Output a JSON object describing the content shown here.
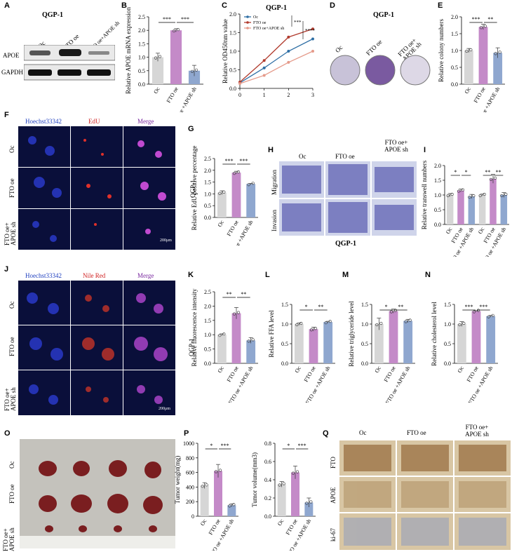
{
  "panels": {
    "A": {
      "label": "A",
      "title": "QGP-1",
      "lanes": [
        "Oc",
        "FTO oe",
        "FTO oe+APOE sh"
      ],
      "rows": [
        "APOE",
        "GAPDH"
      ]
    },
    "B": {
      "label": "B",
      "ylabel": "Relative APOE mRNA expression",
      "sig": [
        "***",
        "***"
      ]
    },
    "C": {
      "label": "C",
      "title": "QGP-1",
      "ylabel": "Relative OD450nm value",
      "legend": [
        "Oc",
        "FTO oe",
        "FTO oe+APOE sh"
      ],
      "sig": [
        "***",
        "****"
      ]
    },
    "D": {
      "label": "D",
      "title": "QGP-1",
      "dishes": [
        "Oc",
        "FTO oe",
        "FTO oe+ APOE sh"
      ]
    },
    "E": {
      "label": "E",
      "ylabel": "Relative colony numbers",
      "sig": [
        "***",
        "**"
      ]
    },
    "F": {
      "label": "F",
      "cols": [
        "Hoechst33342",
        "EdU",
        "Merge"
      ],
      "rows": [
        "Oc",
        "FTO oe",
        "FTO oe+ APOE sh"
      ],
      "scale": "200μm"
    },
    "G": {
      "label": "G",
      "ylabel": "Relative EdU positive percentage",
      "cell": "QGP-1",
      "sig": [
        "***",
        "***"
      ]
    },
    "H": {
      "label": "H",
      "cols": [
        "Oc",
        "FTO oe",
        "FTO oe+ APOE sh"
      ],
      "rows": [
        "Migration",
        "Invasion"
      ],
      "caption": "QGP-1"
    },
    "I": {
      "label": "I",
      "ylabel": "Relative transwell numbers",
      "sig": [
        "*",
        "*",
        "**",
        "**"
      ]
    },
    "J": {
      "label": "J",
      "cols": [
        "Hoechst33342",
        "Nile Red",
        "Merge"
      ],
      "rows": [
        "Oc",
        "FTO oe",
        "FTO oe+ APOE sh"
      ],
      "scale": "200μm"
    },
    "K": {
      "label": "K",
      "ylabel": "Relative fluorescence intensity",
      "cell": "QGP-1",
      "sig": [
        "**",
        "**"
      ]
    },
    "L": {
      "label": "L",
      "ylabel": "Relative FFA level",
      "sig": [
        "*",
        "**"
      ]
    },
    "M": {
      "label": "M",
      "ylabel": "Relative triglyceride level",
      "sig": [
        "*",
        "**"
      ]
    },
    "N": {
      "label": "N",
      "ylabel": "Relative cholesterol level",
      "sig": [
        "***",
        "***"
      ]
    },
    "O": {
      "label": "O",
      "rows": [
        "Oc",
        "FTO oe",
        "FTO oe+ APOE sh"
      ]
    },
    "P": {
      "label": "P"
    },
    "Q": {
      "label": "Q",
      "cols": [
        "Oc",
        "FTO oe",
        "FTO oe+ APOE sh"
      ],
      "rows": [
        "FTO",
        "APOE",
        "ki-67"
      ]
    }
  },
  "group_labels": [
    "Oc",
    "FTO oe",
    "FTO oe +APOE sh"
  ],
  "colors": {
    "oc": "#d6d6d6",
    "fto": "#c48ac8",
    "apoe": "#8fa7cf",
    "line_oc": "#2f6fa5",
    "line_fto": "#b13b2e",
    "line_apoe": "#e59a8a",
    "blue_img": "#0a0f3a",
    "ihc_bg": "#d8c6a4"
  },
  "chart_data": [
    {
      "id": "B",
      "type": "bar",
      "categories": [
        "Oc",
        "FTO oe",
        "FTO oe +APOE sh"
      ],
      "values": [
        1.0,
        2.0,
        0.5
      ],
      "errors": [
        0.15,
        0.06,
        0.2
      ],
      "ylabel": "Relative APOE mRNA expression",
      "ylim": [
        0,
        2.5
      ],
      "yticks": [
        0,
        0.5,
        1.0,
        1.5,
        2.0,
        2.5
      ]
    },
    {
      "id": "C",
      "type": "line",
      "title": "QGP-1",
      "x": [
        0,
        1,
        2,
        3
      ],
      "ylabel": "Relative OD450nm value",
      "ylim": [
        0,
        2.0
      ],
      "yticks": [
        0,
        0.5,
        1.0,
        1.5,
        2.0
      ],
      "xticks": [
        0,
        1,
        2,
        3
      ],
      "series": [
        {
          "name": "Oc",
          "values": [
            0.15,
            0.55,
            1.0,
            1.33
          ]
        },
        {
          "name": "FTO oe",
          "values": [
            0.17,
            0.75,
            1.38,
            1.6
          ]
        },
        {
          "name": "FTO oe+APOE sh",
          "values": [
            0.13,
            0.35,
            0.7,
            1.0
          ]
        }
      ]
    },
    {
      "id": "E",
      "type": "bar",
      "categories": [
        "Oc",
        "FTO oe",
        "FTO oe +APOE sh"
      ],
      "values": [
        1.0,
        1.7,
        0.93
      ],
      "errors": [
        0.06,
        0.08,
        0.15
      ],
      "ylabel": "Relative colony numbers",
      "ylim": [
        0,
        2.0
      ],
      "yticks": [
        0,
        0.5,
        1.0,
        1.5,
        2.0
      ]
    },
    {
      "id": "G",
      "type": "bar",
      "categories": [
        "Oc",
        "FTO oe",
        "FTO oe +APOE sh"
      ],
      "values": [
        1.05,
        1.9,
        1.42
      ],
      "errors": [
        0.08,
        0.06,
        0.02
      ],
      "ylabel": "Relative EdU positive percentage",
      "ylim": [
        0,
        2.5
      ],
      "yticks": [
        0,
        0.5,
        1.0,
        1.5,
        2.0,
        2.5
      ]
    },
    {
      "id": "I",
      "type": "bar",
      "categories": [
        "Oc",
        "FTO oe",
        "FTO oe +APOE sh",
        "Oc",
        "FTO oe",
        "FTO oe +APOE sh"
      ],
      "values": [
        1.0,
        1.15,
        0.95,
        1.0,
        1.55,
        1.0
      ],
      "errors": [
        0.05,
        0.05,
        0.07,
        0.03,
        0.15,
        0.08
      ],
      "ylabel": "Relative transwell numbers",
      "ylim": [
        0,
        2.0
      ],
      "yticks": [
        0,
        0.5,
        1.0,
        1.5,
        2.0
      ]
    },
    {
      "id": "K",
      "type": "bar",
      "categories": [
        "Oc",
        "FTO oe",
        "FTO oe +APOE sh"
      ],
      "values": [
        1.0,
        1.75,
        0.8
      ],
      "errors": [
        0.03,
        0.2,
        0.1
      ],
      "ylabel": "Relative fluorescence intensity",
      "ylim": [
        0,
        2.5
      ],
      "yticks": [
        0,
        0.5,
        1.0,
        1.5,
        2.0,
        2.5
      ]
    },
    {
      "id": "L",
      "type": "bar",
      "categories": [
        "Oc",
        "FTO oe",
        "FTO oe +APOE sh"
      ],
      "values": [
        1.0,
        0.87,
        1.05
      ],
      "errors": [
        0.03,
        0.05,
        0.02
      ],
      "ylabel": "Relative FFA level",
      "ylim": [
        0,
        1.5
      ],
      "yticks": [
        0,
        0.5,
        1.0,
        1.5
      ]
    },
    {
      "id": "M",
      "type": "bar",
      "categories": [
        "Oc",
        "FTO oe",
        "FTO oe +APOE sh"
      ],
      "values": [
        1.0,
        1.33,
        1.08
      ],
      "errors": [
        0.15,
        0.05,
        0.04
      ],
      "ylabel": "Relative triglyceride level",
      "ylim": [
        0,
        1.5
      ],
      "yticks": [
        0,
        0.5,
        1.0,
        1.5
      ]
    },
    {
      "id": "N",
      "type": "bar",
      "categories": [
        "Oc",
        "FTO oe",
        "FTO oe +APOE sh"
      ],
      "values": [
        1.0,
        1.33,
        1.2
      ],
      "errors": [
        0.06,
        0.01,
        0.02
      ],
      "ylabel": "Relative cholesterol level",
      "ylim": [
        0,
        1.5
      ],
      "yticks": [
        0,
        0.5,
        1.0,
        1.5
      ]
    },
    {
      "id": "P1",
      "type": "bar",
      "categories": [
        "Oc",
        "FTO oe",
        "FTO oe +APOE sh"
      ],
      "values": [
        420,
        620,
        150
      ],
      "errors": [
        40,
        90,
        20
      ],
      "ylabel": "Tumor weight(mg)",
      "ylim": [
        0,
        1000
      ],
      "yticks": [
        0,
        200,
        400,
        600,
        800,
        1000
      ],
      "sig": [
        "*",
        "***"
      ]
    },
    {
      "id": "P2",
      "type": "bar",
      "categories": [
        "Oc",
        "FTO oe",
        "FTO oe +APOE sh"
      ],
      "values": [
        0.35,
        0.48,
        0.15
      ],
      "errors": [
        0.03,
        0.07,
        0.05
      ],
      "ylabel": "Tumor volume(mm3)",
      "ylim": [
        0,
        0.8
      ],
      "yticks": [
        0.0,
        0.2,
        0.4,
        0.6,
        0.8
      ],
      "sig": [
        "*",
        "***"
      ]
    }
  ]
}
